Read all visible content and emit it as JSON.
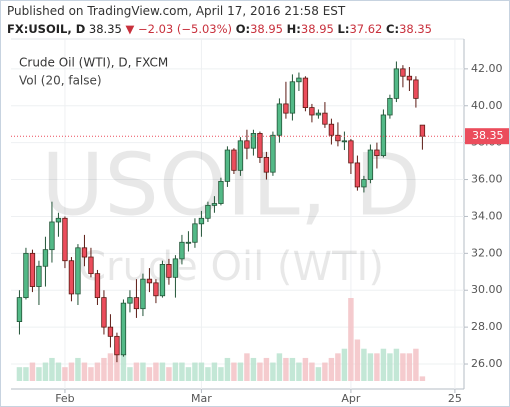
{
  "chart_data": {
    "type": "candlestick",
    "published": "Published on TradingView.com, April 17, 2016 21:58 EST",
    "symbol": "FX:USOIL, D",
    "last_price": "38.35",
    "change": "▼ −2.03 (−5.03%)",
    "ohlc_fields": [
      {
        "label": "O:",
        "value": "38.95"
      },
      {
        "label": "H:",
        "value": "38.95"
      },
      {
        "label": "L:",
        "value": "37.62"
      },
      {
        "label": "C:",
        "value": "38.35"
      }
    ],
    "legend_title": "Crude Oil (WTI), D, FXCM",
    "volume_legend": "Vol (20, false)",
    "watermark": "USOIL, D",
    "watermark_subtitle": "Crude Oil (WTI)",
    "up_color": "#53b987",
    "down_color": "#eb4d5c",
    "volume_up_color": "#b9e3cf",
    "volume_down_color": "#f3c2c6",
    "open": [
      28.3,
      29.6,
      32.0,
      30.2,
      31.3,
      32.2,
      33.7,
      33.9,
      31.6,
      29.8,
      32.3,
      31.8,
      30.9,
      29.6,
      28.0,
      27.5,
      26.5,
      29.3,
      29.6,
      29.0,
      30.6,
      30.4,
      29.7,
      31.4,
      30.7,
      31.7,
      32.6,
      32.6,
      33.6,
      33.9,
      34.6,
      34.7,
      35.9,
      37.6,
      36.5,
      38.1,
      37.7,
      38.5,
      37.2,
      36.4,
      38.4,
      40.1,
      39.6,
      41.3,
      41.5,
      39.9,
      39.5,
      39.6,
      39.0,
      38.4,
      38.1,
      38.1,
      36.9,
      35.6,
      36.0,
      37.6,
      37.3,
      39.5,
      40.4,
      42.0,
      41.6,
      41.4,
      38.95
    ],
    "high": [
      30.0,
      32.3,
      32.2,
      31.6,
      32.9,
      34.8,
      34.2,
      34.0,
      31.8,
      32.5,
      33.0,
      32.3,
      31.1,
      30.0,
      28.7,
      27.7,
      29.5,
      30.0,
      30.6,
      30.9,
      31.2,
      30.6,
      31.6,
      31.7,
      31.9,
      33.0,
      33.2,
      33.9,
      34.3,
      34.8,
      35.1,
      36.1,
      37.8,
      37.7,
      38.3,
      38.7,
      38.7,
      38.6,
      37.5,
      38.6,
      40.4,
      41.3,
      41.7,
      41.8,
      41.6,
      40.1,
      39.8,
      40.2,
      39.3,
      39.1,
      38.6,
      38.2,
      37.3,
      36.2,
      37.9,
      38.0,
      39.8,
      40.6,
      42.4,
      42.2,
      42.1,
      41.6,
      38.95
    ],
    "low": [
      27.6,
      29.5,
      29.9,
      29.2,
      30.2,
      31.5,
      32.9,
      31.2,
      29.4,
      29.2,
      31.3,
      30.7,
      29.2,
      27.6,
      26.9,
      26.1,
      26.4,
      28.8,
      28.5,
      28.6,
      29.9,
      29.3,
      29.6,
      30.3,
      29.6,
      31.4,
      32.1,
      32.3,
      32.9,
      33.7,
      34.2,
      34.6,
      35.6,
      36.3,
      36.2,
      37.1,
      37.3,
      36.9,
      36.0,
      36.2,
      38.0,
      39.3,
      39.2,
      40.8,
      39.7,
      39.1,
      39.3,
      38.8,
      37.9,
      37.8,
      37.6,
      36.3,
      35.4,
      35.3,
      35.8,
      36.6,
      37.2,
      39.3,
      40.2,
      41.0,
      40.8,
      39.9,
      37.62
    ],
    "close": [
      29.6,
      32.0,
      30.2,
      31.3,
      32.2,
      33.7,
      33.9,
      31.6,
      29.8,
      32.3,
      31.8,
      30.9,
      29.6,
      28.0,
      27.5,
      26.5,
      29.3,
      29.6,
      29.0,
      30.6,
      30.4,
      29.7,
      31.4,
      30.7,
      31.7,
      32.6,
      32.6,
      33.6,
      33.9,
      34.6,
      34.7,
      35.9,
      37.6,
      36.5,
      38.1,
      37.7,
      38.5,
      37.2,
      36.4,
      38.4,
      40.1,
      39.6,
      41.3,
      41.5,
      39.9,
      39.5,
      39.6,
      39.0,
      38.4,
      38.1,
      38.1,
      36.9,
      35.6,
      36.0,
      37.6,
      37.3,
      39.5,
      40.4,
      42.0,
      41.6,
      41.4,
      40.4,
      38.35
    ],
    "volume": [
      3,
      3,
      4,
      3,
      4,
      5,
      4,
      3,
      4,
      5,
      4,
      3,
      4,
      5,
      6,
      8,
      6,
      3,
      4,
      4,
      3,
      4,
      4,
      3,
      4,
      4,
      3,
      4,
      4,
      3,
      4,
      3,
      5,
      4,
      4,
      6,
      5,
      4,
      5,
      4,
      6,
      5,
      5,
      4,
      5,
      4,
      3,
      4,
      5,
      6,
      7,
      18,
      9,
      7,
      6,
      6,
      7,
      6,
      7,
      6,
      6,
      7,
      1
    ],
    "xlim": [
      -1.3,
      68.4
    ],
    "ylim": [
      25.08,
      43.51
    ],
    "xticks": [
      {
        "value": 7,
        "label": "Feb"
      },
      {
        "value": 28,
        "label": "Mar"
      },
      {
        "value": 51,
        "label": "Apr"
      },
      {
        "value": 67,
        "label": "25"
      }
    ],
    "yticks": [
      {
        "value": 26,
        "label": "26.00"
      },
      {
        "value": 28,
        "label": "28.00"
      },
      {
        "value": 30,
        "label": "30.00"
      },
      {
        "value": 32,
        "label": "32.00"
      },
      {
        "value": 34,
        "label": "34.00"
      },
      {
        "value": 36,
        "label": "36.00"
      },
      {
        "value": 38,
        "label": "38.00"
      },
      {
        "value": 40,
        "label": "40.00"
      },
      {
        "value": 42,
        "label": "42.00"
      }
    ],
    "grid": true
  }
}
